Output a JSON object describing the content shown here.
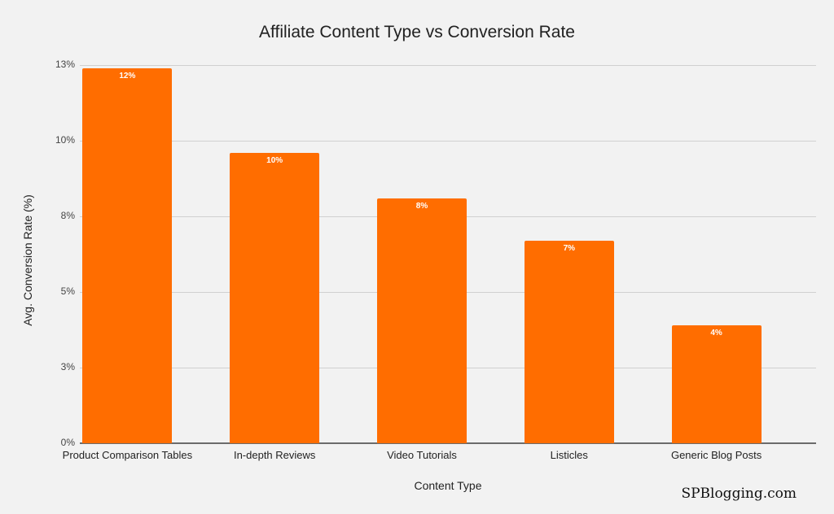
{
  "chart_data": {
    "type": "bar",
    "title": "Affiliate Content Type vs Conversion Rate",
    "xlabel": "Content Type",
    "ylabel": "Avg. Conversion Rate (%)",
    "categories": [
      "Product Comparison Tables",
      "In-depth Reviews",
      "Video Tutorials",
      "Listicles",
      "Generic Blog Posts"
    ],
    "values": [
      12.4,
      9.6,
      8.1,
      6.7,
      3.9
    ],
    "data_labels": [
      "12%",
      "10%",
      "8%",
      "7%",
      "4%"
    ],
    "ylim": [
      0,
      12.5
    ],
    "yticks": [
      0,
      2.5,
      5,
      7.5,
      10,
      12.5
    ],
    "ytick_labels": [
      "0%",
      "3%",
      "5%",
      "8%",
      "10%",
      "13%"
    ],
    "grid": true,
    "legend": "none",
    "bar_color": "#ff6d00"
  },
  "watermark": "SPBlogging.com"
}
